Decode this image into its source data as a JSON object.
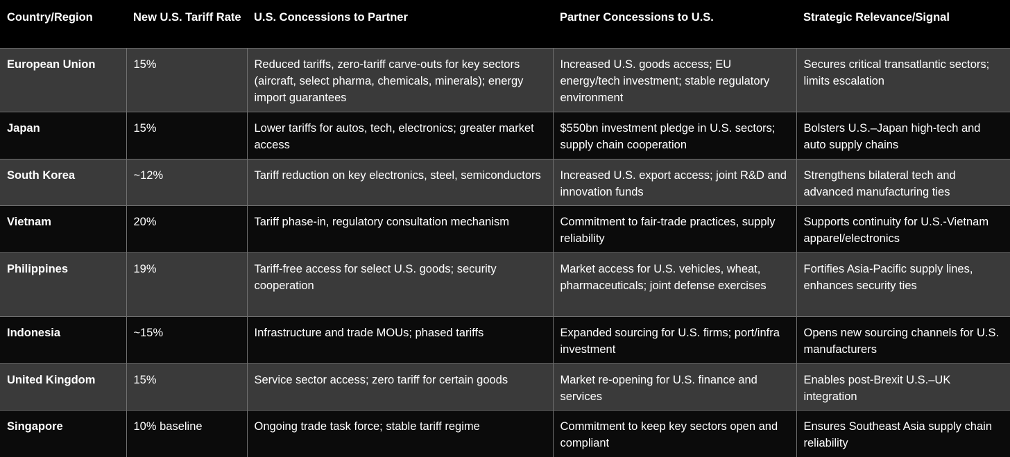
{
  "table": {
    "headers": [
      "Country/Region",
      "New U.S. Tariff Rate",
      "U.S. Concessions to Partner",
      "Partner Concessions to U.S.",
      "Strategic Relevance/Signal"
    ],
    "rows": [
      {
        "country": "European Union",
        "rate": "15%",
        "us_concessions": "Reduced tariffs, zero-tariff carve-outs for key sectors (aircraft, select pharma, chemicals, minerals); energy import guarantees",
        "partner_concessions": "Increased U.S. goods access; EU energy/tech investment; stable regulatory environment",
        "signal": "Secures critical transatlantic sectors; limits escalation"
      },
      {
        "country": "Japan",
        "rate": "15%",
        "us_concessions": "Lower tariffs for autos, tech, electronics; greater market access",
        "partner_concessions": "$550bn investment pledge in U.S. sectors; supply chain cooperation",
        "signal": "Bolsters U.S.–Japan high-tech and auto supply chains"
      },
      {
        "country": "South Korea",
        "rate": "~12%",
        "us_concessions": "Tariff reduction on key electronics, steel, semiconductors",
        "partner_concessions": "Increased U.S. export access; joint R&D and innovation funds",
        "signal": "Strengthens bilateral tech and advanced manufacturing ties"
      },
      {
        "country": "Vietnam",
        "rate": "20%",
        "us_concessions": "Tariff phase-in, regulatory consultation mechanism",
        "partner_concessions": "Commitment to fair-trade practices, supply reliability",
        "signal": "Supports continuity for U.S.-Vietnam apparel/electronics"
      },
      {
        "country": "Philippines",
        "rate": "19%",
        "us_concessions": "Tariff-free access for select U.S. goods; security cooperation",
        "partner_concessions": "Market access for U.S. vehicles, wheat, pharmaceuticals; joint defense exercises",
        "signal": "Fortifies Asia-Pacific supply lines, enhances security ties"
      },
      {
        "country": "Indonesia",
        "rate": "~15%",
        "us_concessions": "Infrastructure and trade MOUs; phased tariffs",
        "partner_concessions": "Expanded sourcing for U.S. firms; port/infra investment",
        "signal": "Opens new sourcing channels for U.S. manufacturers"
      },
      {
        "country": "United Kingdom",
        "rate": "15%",
        "us_concessions": "Service sector access; zero tariff for certain goods",
        "partner_concessions": "Market re-opening for U.S. finance and services",
        "signal": "Enables post-Brexit U.S.–UK integration"
      },
      {
        "country": "Singapore",
        "rate": "10% baseline",
        "us_concessions": "Ongoing trade task force; stable tariff regime",
        "partner_concessions": "Commitment to keep key sectors open and compliant",
        "signal": "Ensures Southeast Asia supply chain reliability"
      }
    ]
  },
  "colors": {
    "header_bg": "#000000",
    "row_light": "#3a3a3a",
    "row_dark": "#0b0b0b",
    "grid_line": "#6f6f6f",
    "text": "#ffffff"
  }
}
